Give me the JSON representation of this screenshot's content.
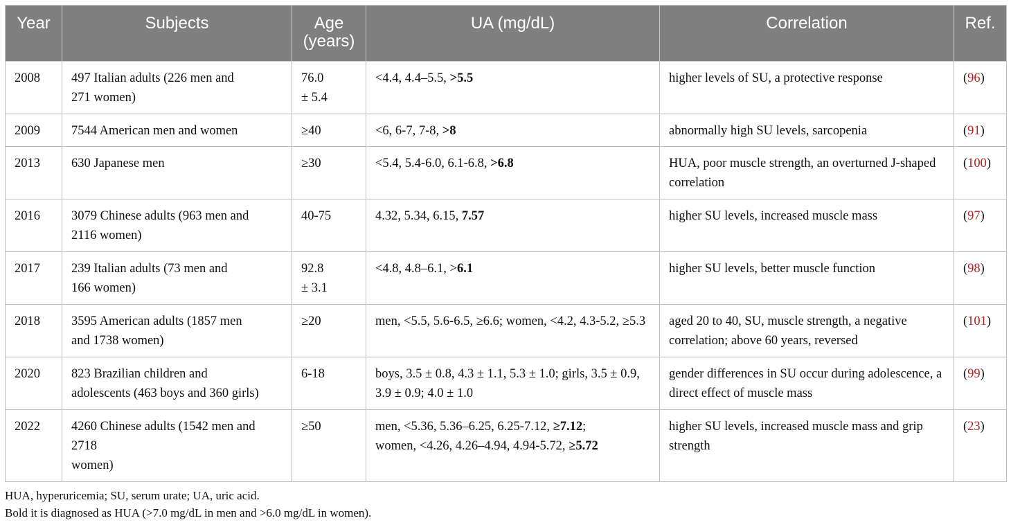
{
  "table": {
    "headers": [
      "Year",
      "Subjects",
      "Age\n(years)",
      "UA (mg/dL)",
      "Correlation",
      "Ref."
    ],
    "rows": [
      {
        "year": "2008",
        "subjects": "497 Italian adults (226 men and\n271 women)",
        "age": "76.0\n± 5.4",
        "ua_plain": "<4.4, 4.4–5.5, ",
        "ua_bold": ">5.5",
        "correlation": "higher levels of SU, a protective response",
        "ref": "96"
      },
      {
        "year": "2009",
        "subjects": "7544 American men and women",
        "age": "≥40",
        "ua_plain": "<6, 6-7, 7-8, ",
        "ua_bold": ">8",
        "correlation": "abnormally high SU levels, sarcopenia",
        "ref": "91"
      },
      {
        "year": "2013",
        "subjects": "630 Japanese men",
        "age": "≥30",
        "ua_plain": "<5.4, 5.4-6.0, 6.1-6.8, ",
        "ua_bold": ">6.8",
        "correlation": "HUA, poor muscle strength, an overturned J-shaped correlation",
        "ref": "100"
      },
      {
        "year": "2016",
        "subjects": "3079 Chinese adults (963 men and\n2116 women)",
        "age": "40-75",
        "ua_plain": "4.32, 5.34, 6.15, ",
        "ua_bold": "7.57",
        "correlation": "higher SU levels, increased muscle mass",
        "ref": "97"
      },
      {
        "year": "2017",
        "subjects": "239 Italian adults (73 men and\n166 women)",
        "age": "92.8\n± 3.1",
        "ua_plain": "<4.8, 4.8–6.1, >",
        "ua_bold": "6.1",
        "correlation": "higher SU levels, better muscle function",
        "ref": "98"
      },
      {
        "year": "2018",
        "subjects": "3595 American adults (1857 men\nand 1738 women)",
        "age": "≥20",
        "ua_plain": "men, <5.5, 5.6-6.5, ≥6.6; women, <4.2, 4.3-5.2, ≥5.3",
        "ua_bold": "",
        "correlation": "aged 20 to 40, SU, muscle strength, a negative correlation; above 60 years, reversed",
        "ref": "101"
      },
      {
        "year": "2020",
        "subjects": "823 Brazilian children and\nadolescents (463 boys and 360 girls)",
        "age": "6-18",
        "ua_plain": "boys, 3.5 ± 0.8, 4.3 ± 1.1, 5.3 ± 1.0; girls, 3.5 ± 0.9, 3.9 ± 0.9; 4.0 ± 1.0",
        "ua_bold": "",
        "correlation": "gender differences in SU occur during adolescence, a direct effect of muscle mass",
        "ref": "99"
      },
      {
        "year": "2022",
        "subjects": "4260 Chinese adults (1542 men and\n2718\nwomen)",
        "age": "≥50",
        "ua_part1": "men, <5.36, 5.36–6.25, 6.25-7.12, ",
        "ua_bold1": "≥7.12",
        "ua_part2": ";\nwomen, <4.26, 4.26–4.94, 4.94-5.72, ",
        "ua_bold2": "≥5.72",
        "correlation": "higher SU levels, increased muscle mass and grip strength",
        "ref": "23"
      }
    ]
  },
  "footnotes": [
    "HUA, hyperuricemia; SU, serum urate; UA, uric acid.",
    "Bold it is diagnosed as HUA (>7.0 mg/dL in men and >6.0 mg/dL in women)."
  ],
  "colors": {
    "header_bg": "#7f7f7f",
    "header_text": "#ffffff",
    "ref_link": "#b22222"
  }
}
